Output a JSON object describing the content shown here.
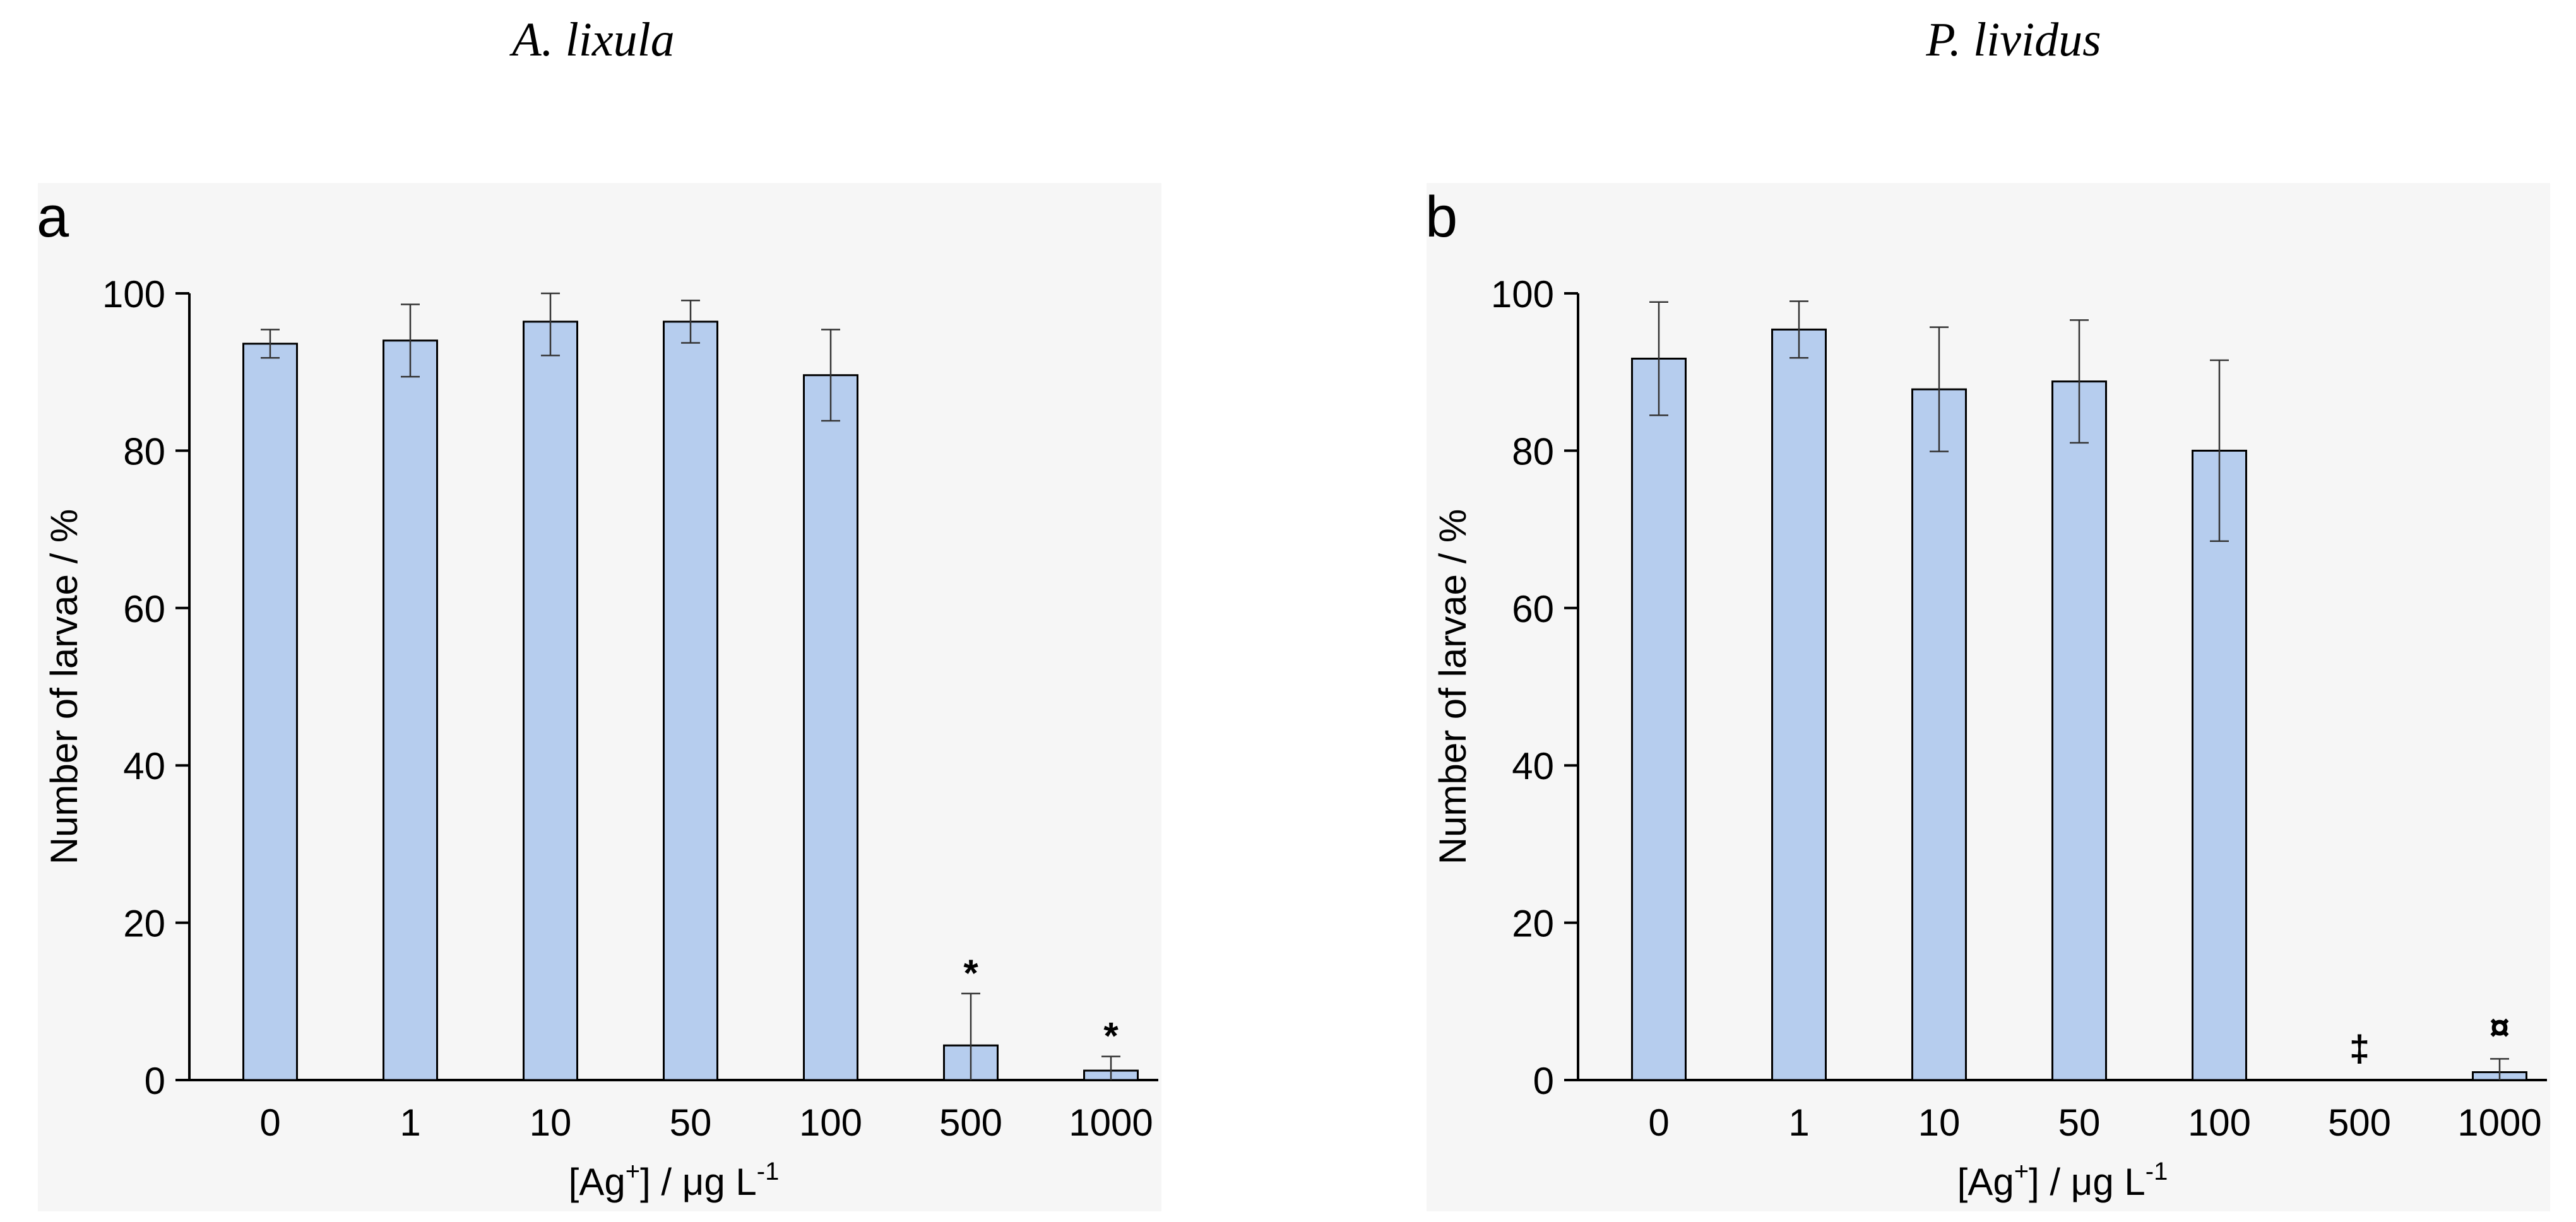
{
  "chart_data": [
    {
      "type": "bar",
      "panel_label": "a",
      "species": "A. lixula",
      "categories": [
        "0",
        "1",
        "10",
        "50",
        "100",
        "500",
        "1000"
      ],
      "values": [
        93.6,
        94.0,
        96.4,
        96.4,
        89.6,
        4.4,
        1.2
      ],
      "error": [
        1.8,
        4.6,
        4.3,
        2.7,
        5.8,
        6.6,
        1.8
      ],
      "annotations": [
        "",
        "",
        "",
        "",
        "",
        "*",
        "*"
      ],
      "ylabel": "Number of larvae / %",
      "xlabel_parts": {
        "a": "[Ag",
        "sup1": "+",
        "b": "] / μg L",
        "sup2": "-1"
      },
      "ylim": [
        0,
        100
      ],
      "yticks": [
        "0",
        "20",
        "40",
        "60",
        "80",
        "100"
      ],
      "colors": {
        "bar": "#b6cdee",
        "plot_bg": "#f6f6f6"
      }
    },
    {
      "type": "bar",
      "panel_label": "b",
      "species": "P. lividus",
      "categories": [
        "0",
        "1",
        "10",
        "50",
        "100",
        "500",
        "1000"
      ],
      "values": [
        91.7,
        95.4,
        87.8,
        88.8,
        80.0,
        0,
        1.0
      ],
      "error": [
        7.2,
        3.6,
        7.9,
        7.8,
        11.5,
        0,
        1.7
      ],
      "annotations": [
        "",
        "",
        "",
        "",
        "",
        "‡",
        "¤"
      ],
      "ylabel": "Number of larvae / %",
      "xlabel_parts": {
        "a": "[Ag",
        "sup1": "+",
        "b": "] / μg L",
        "sup2": "-1"
      },
      "ylim": [
        0,
        100
      ],
      "yticks": [
        "0",
        "20",
        "40",
        "60",
        "80",
        "100"
      ],
      "colors": {
        "bar": "#b6cdee",
        "plot_bg": "#f6f6f6"
      }
    }
  ]
}
